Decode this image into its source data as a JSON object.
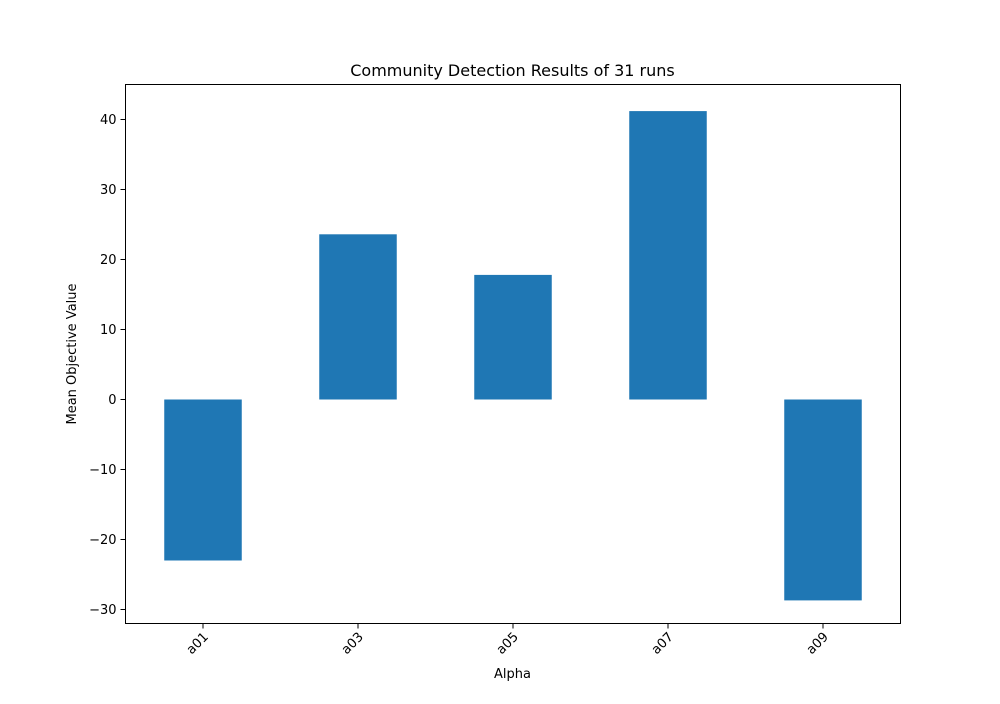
{
  "chart_data": {
    "type": "bar",
    "title": "Community Detection Results of 31 runs",
    "xlabel": "Alpha",
    "ylabel": "Mean Objective Value",
    "categories": [
      "a01",
      "a03",
      "a05",
      "a07",
      "a09"
    ],
    "values": [
      -23.0,
      23.6,
      17.8,
      41.2,
      -28.7
    ],
    "ylim": [
      -32.0,
      45.0
    ],
    "yticks": [
      -30,
      -20,
      -10,
      0,
      10,
      20,
      30,
      40
    ],
    "ytick_labels": [
      "−30",
      "−20",
      "−10",
      "0",
      "10",
      "20",
      "30",
      "40"
    ],
    "bar_color": "#1f77b4",
    "grid": false,
    "legend": false
  }
}
